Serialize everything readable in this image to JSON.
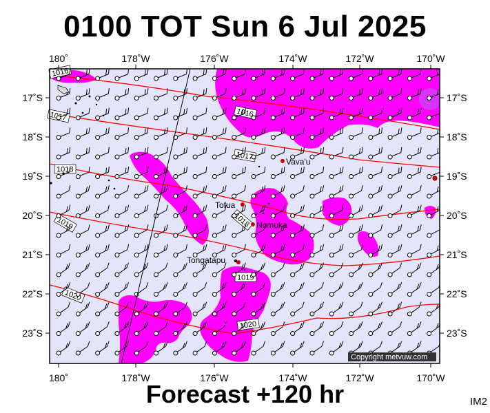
{
  "header": {
    "title": "0100 TOT Sun 6 Jul 2025"
  },
  "footer": {
    "forecast": "Forecast +120 hr",
    "image_tag": "IM2"
  },
  "map": {
    "lon_labels": [
      "180˚",
      "178˚W",
      "176˚W",
      "174˚W",
      "172˚W",
      "170˚W"
    ],
    "lat_labels": [
      "17˚S",
      "18˚S",
      "19˚S",
      "20˚S",
      "21˚S",
      "22˚S",
      "23˚S"
    ],
    "isobar_labels": [
      "1016",
      "1017",
      "1016",
      "1017",
      "1018",
      "1019",
      "1018",
      "1019",
      "1020",
      "1020"
    ],
    "places": [
      "Vava'u",
      "Tofua",
      "Nomuka",
      "Tongatapu"
    ],
    "copyright": "Copyright metvuw.com",
    "colors": {
      "ocean": "#e4e4fa",
      "rain": "#ff00ff",
      "isobar": "#ff0000",
      "land": "#000000"
    }
  }
}
